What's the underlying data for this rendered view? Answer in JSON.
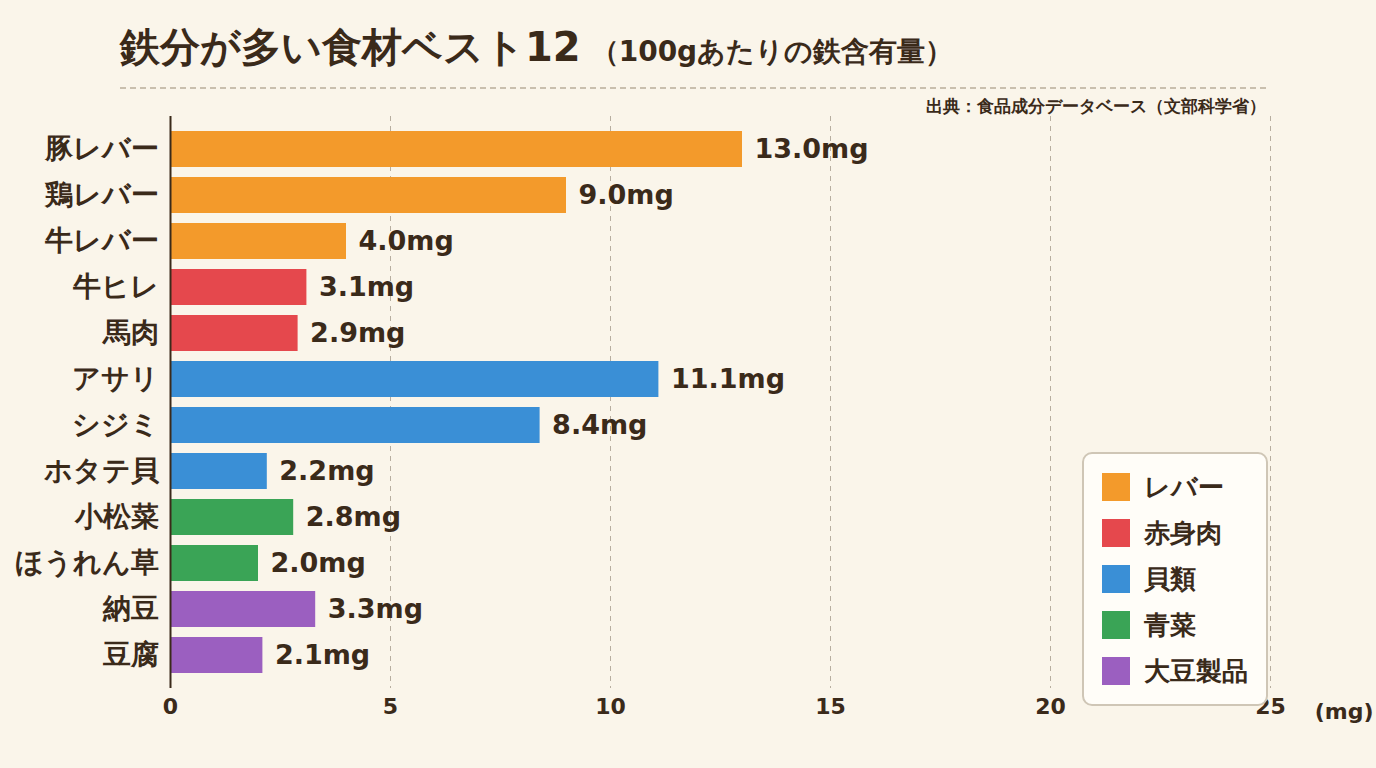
{
  "chart_data": {
    "type": "bar",
    "title": "鉄分が多い食材ベスト12",
    "subtitle": "（100gあたりの鉄含有量）",
    "source": "出典：食品成分データベース（文部科学省）",
    "orientation": "horizontal",
    "x_label": "(mg)",
    "categories": [
      "豚レバー",
      "鶏レバー",
      "牛レバー",
      "牛ヒレ",
      "馬肉",
      "アサリ",
      "シジミ",
      "ホタテ貝",
      "小松菜",
      "ほうれん草",
      "納豆",
      "豆腐"
    ],
    "series": [
      {
        "name": "レバー",
        "color": "#f39a2b",
        "values": [
          13.0,
          9.0,
          4.0,
          null,
          null,
          null,
          null,
          null,
          null,
          null,
          null,
          null
        ],
        "value_labels": [
          "13.0mg",
          "9.0mg",
          "4.0mg",
          null,
          null,
          null,
          null,
          null,
          null,
          null,
          null,
          null
        ]
      },
      {
        "name": "赤身肉",
        "color": "#e5484d",
        "values": [
          null,
          null,
          null,
          3.1,
          2.9,
          null,
          null,
          null,
          null,
          null,
          null,
          null
        ],
        "value_labels": [
          null,
          null,
          null,
          "3.1mg",
          "2.9mg",
          null,
          null,
          null,
          null,
          null,
          null,
          null
        ]
      },
      {
        "name": "貝類",
        "color": "#3a8fd6",
        "values": [
          null,
          null,
          null,
          null,
          null,
          11.1,
          8.4,
          2.2,
          null,
          null,
          null,
          null
        ],
        "value_labels": [
          null,
          null,
          null,
          null,
          null,
          "11.1mg",
          "8.4mg",
          "2.2mg",
          null,
          null,
          null,
          null
        ]
      },
      {
        "name": "青菜",
        "color": "#3aa456",
        "values": [
          null,
          null,
          null,
          null,
          null,
          null,
          null,
          null,
          2.8,
          2.0,
          null,
          null
        ],
        "value_labels": [
          null,
          null,
          null,
          null,
          null,
          null,
          null,
          null,
          "2.8mg",
          "2.0mg",
          null,
          null
        ]
      },
      {
        "name": "大豆製品",
        "color": "#9b5fc0",
        "values": [
          null,
          null,
          null,
          null,
          null,
          null,
          null,
          null,
          null,
          null,
          3.3,
          2.1
        ],
        "value_labels": [
          null,
          null,
          null,
          null,
          null,
          null,
          null,
          null,
          null,
          null,
          "3.3mg",
          "2.1mg"
        ]
      }
    ],
    "xlim": [
      0,
      25
    ],
    "xticks": [
      0,
      5,
      10,
      15,
      20,
      25
    ],
    "grid": true,
    "data_labels": true,
    "legend": "lower right"
  }
}
